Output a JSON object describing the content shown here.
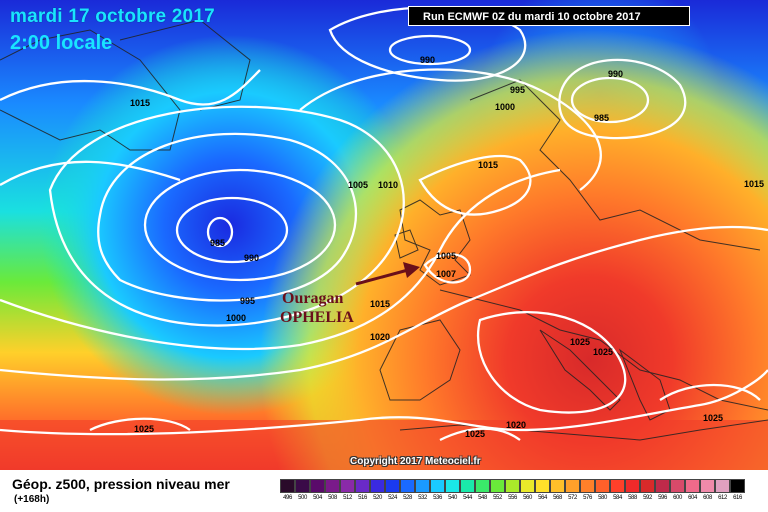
{
  "header": {
    "date": "mardi 17 octobre 2017",
    "time": "2:00 locale",
    "run": "Run ECMWF 0Z du mardi 10 octobre 2017"
  },
  "map": {
    "annotation_line1": "Ouragan",
    "annotation_line2": "OPHELIA",
    "annotation_color": "#6a0f1a",
    "isobar_labels": [
      "990",
      "995",
      "1000",
      "990",
      "985",
      "1015",
      "1015",
      "1005",
      "1010",
      "985",
      "990",
      "995",
      "1000",
      "1005",
      "1007",
      "1015",
      "1015",
      "1020",
      "1025",
      "1025",
      "1025",
      "1025",
      "1020",
      "1025"
    ],
    "copyright": "Copyright 2017 Meteociel.fr"
  },
  "legend": {
    "title": "Géop. z500, pression niveau mer",
    "subtitle": "(+168h)",
    "scale": [
      {
        "v": "496",
        "c": "#2a0a2a"
      },
      {
        "v": "500",
        "c": "#3a0a48"
      },
      {
        "v": "504",
        "c": "#5a0a6a"
      },
      {
        "v": "508",
        "c": "#7a1a8a"
      },
      {
        "v": "512",
        "c": "#8a2aa8"
      },
      {
        "v": "516",
        "c": "#6a2ac8"
      },
      {
        "v": "520",
        "c": "#3a2ae0"
      },
      {
        "v": "524",
        "c": "#1a3af0"
      },
      {
        "v": "528",
        "c": "#1a6aff"
      },
      {
        "v": "532",
        "c": "#1a9aff"
      },
      {
        "v": "536",
        "c": "#1acaff"
      },
      {
        "v": "540",
        "c": "#1ae8e8"
      },
      {
        "v": "544",
        "c": "#1aeaaa"
      },
      {
        "v": "548",
        "c": "#3aea6a"
      },
      {
        "v": "552",
        "c": "#6aea3a"
      },
      {
        "v": "556",
        "c": "#aaea2a"
      },
      {
        "v": "560",
        "c": "#eaea2a"
      },
      {
        "v": "564",
        "c": "#ffe02a"
      },
      {
        "v": "568",
        "c": "#ffc02a"
      },
      {
        "v": "572",
        "c": "#ffa02a"
      },
      {
        "v": "576",
        "c": "#ff802a"
      },
      {
        "v": "580",
        "c": "#ff602a"
      },
      {
        "v": "584",
        "c": "#ff402a"
      },
      {
        "v": "588",
        "c": "#f02a2a"
      },
      {
        "v": "592",
        "c": "#d82a2a"
      },
      {
        "v": "596",
        "c": "#c02a4a"
      },
      {
        "v": "600",
        "c": "#d84a6a"
      },
      {
        "v": "604",
        "c": "#f06a8a"
      },
      {
        "v": "608",
        "c": "#f08aaa"
      },
      {
        "v": "612",
        "c": "#e0a0c0"
      },
      {
        "v": "616",
        "c": "#000000"
      }
    ]
  }
}
